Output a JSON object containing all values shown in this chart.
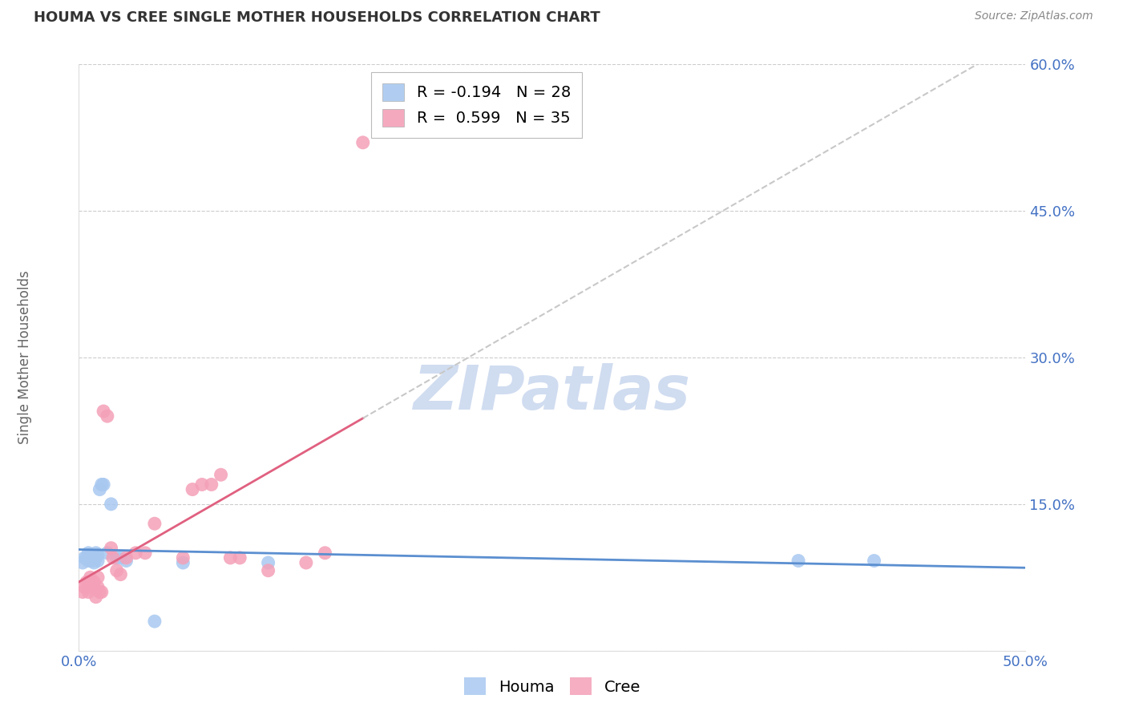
{
  "title": "HOUMA VS CREE SINGLE MOTHER HOUSEHOLDS CORRELATION CHART",
  "source": "Source: ZipAtlas.com",
  "ylabel": "Single Mother Households",
  "xlabel": "",
  "xlim": [
    0.0,
    0.5
  ],
  "ylim": [
    0.0,
    0.6
  ],
  "xtick_vals": [
    0.0,
    0.1,
    0.2,
    0.3,
    0.4,
    0.5
  ],
  "xtick_labels": [
    "0.0%",
    "",
    "",
    "",
    "",
    "50.0%"
  ],
  "ytick_vals": [
    0.0,
    0.15,
    0.3,
    0.45,
    0.6
  ],
  "ytick_labels": [
    "",
    "15.0%",
    "30.0%",
    "45.0%",
    "60.0%"
  ],
  "houma_R": -0.194,
  "houma_N": 28,
  "cree_R": 0.599,
  "cree_N": 35,
  "houma_color": "#A8C8F0",
  "cree_color": "#F4A0B8",
  "houma_line_color": "#5B8FD0",
  "cree_line_color": "#E06080",
  "trend_dash_color": "#C8C8C8",
  "watermark": "ZIPatlas",
  "watermark_color": "#D0DCF0",
  "houma_x": [
    0.002,
    0.003,
    0.004,
    0.005,
    0.005,
    0.006,
    0.006,
    0.007,
    0.007,
    0.008,
    0.008,
    0.009,
    0.009,
    0.01,
    0.01,
    0.011,
    0.012,
    0.013,
    0.015,
    0.017,
    0.02,
    0.022,
    0.025,
    0.04,
    0.055,
    0.1,
    0.38,
    0.42
  ],
  "houma_y": [
    0.09,
    0.095,
    0.095,
    0.092,
    0.1,
    0.095,
    0.098,
    0.092,
    0.096,
    0.09,
    0.093,
    0.095,
    0.1,
    0.092,
    0.098,
    0.165,
    0.17,
    0.17,
    0.1,
    0.15,
    0.095,
    0.095,
    0.092,
    0.03,
    0.09,
    0.09,
    0.092,
    0.092
  ],
  "cree_x": [
    0.002,
    0.003,
    0.004,
    0.005,
    0.005,
    0.006,
    0.007,
    0.008,
    0.008,
    0.009,
    0.01,
    0.01,
    0.011,
    0.012,
    0.013,
    0.015,
    0.017,
    0.018,
    0.02,
    0.022,
    0.025,
    0.03,
    0.035,
    0.04,
    0.055,
    0.06,
    0.065,
    0.07,
    0.075,
    0.08,
    0.085,
    0.1,
    0.12,
    0.13,
    0.15
  ],
  "cree_y": [
    0.06,
    0.065,
    0.07,
    0.065,
    0.06,
    0.075,
    0.065,
    0.07,
    0.065,
    0.055,
    0.065,
    0.075,
    0.06,
    0.06,
    0.245,
    0.24,
    0.105,
    0.095,
    0.082,
    0.078,
    0.095,
    0.1,
    0.1,
    0.13,
    0.095,
    0.165,
    0.17,
    0.17,
    0.18,
    0.095,
    0.095,
    0.082,
    0.09,
    0.1,
    0.52
  ]
}
